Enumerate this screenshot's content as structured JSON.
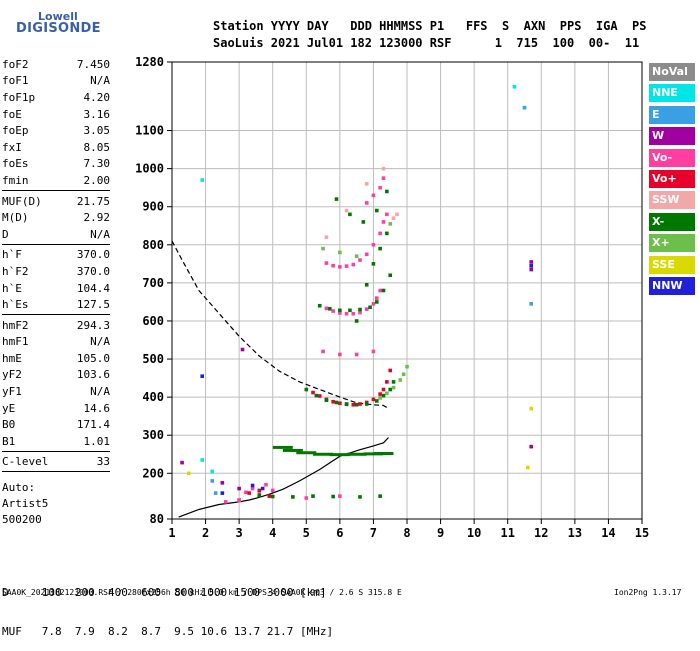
{
  "logo": {
    "line1": "Lowell",
    "line2": "DIGISONDE"
  },
  "header": {
    "row1": "Station YYYY DAY   DDD HHMMSS P1   FFS  S  AXN  PPS  IGA  PS",
    "row2": "SaoLuis 2021 Jul01 182 123000 RSF      1  715  100  00-  11"
  },
  "params": [
    {
      "name": "foF2",
      "value": "7.450"
    },
    {
      "name": "foF1",
      "value": "N/A"
    },
    {
      "name": "foF1p",
      "value": "4.20"
    },
    {
      "name": "foE",
      "value": "3.16"
    },
    {
      "name": "foEp",
      "value": "3.05"
    },
    {
      "name": "fxI",
      "value": "8.05"
    },
    {
      "name": "foEs",
      "value": "7.30"
    },
    {
      "name": "fmin",
      "value": "2.00"
    },
    {
      "sep": true
    },
    {
      "name": "MUF(D)",
      "value": "21.75"
    },
    {
      "name": "M(D)",
      "value": "2.92"
    },
    {
      "name": "D",
      "value": "N/A"
    },
    {
      "sep": true
    },
    {
      "name": "h`F",
      "value": "370.0"
    },
    {
      "name": "h`F2",
      "value": "370.0"
    },
    {
      "name": "h`E",
      "value": "104.4"
    },
    {
      "name": "h`Es",
      "value": "127.5"
    },
    {
      "sep": true
    },
    {
      "name": "hmF2",
      "value": "294.3"
    },
    {
      "name": "hmF1",
      "value": "N/A"
    },
    {
      "name": "hmE",
      "value": "105.0"
    },
    {
      "name": "yF2",
      "value": "103.6"
    },
    {
      "name": "yF1",
      "value": "N/A"
    },
    {
      "name": "yE",
      "value": "14.6"
    },
    {
      "name": "B0",
      "value": "171.4"
    },
    {
      "name": "B1",
      "value": "1.01"
    },
    {
      "sep": true
    },
    {
      "name": "C-level",
      "value": "33"
    },
    {
      "sep": true
    }
  ],
  "auto": {
    "line1": "Auto:",
    "line2": "Artist5",
    "line3": "500200"
  },
  "legend": [
    {
      "label": "NoVal",
      "color": "#8c8c8c"
    },
    {
      "label": "NNE",
      "color": "#00e5e5"
    },
    {
      "label": "E",
      "color": "#3aa0e6"
    },
    {
      "label": "W",
      "color": "#a000a0"
    },
    {
      "label": "Vo-",
      "color": "#ff3fa0"
    },
    {
      "label": "Vo+",
      "color": "#e6002a"
    },
    {
      "label": "SSW",
      "color": "#f0a8a8"
    },
    {
      "label": "X-",
      "color": "#007800"
    },
    {
      "label": "X+",
      "color": "#6cbf4a"
    },
    {
      "label": "SSE",
      "color": "#d9d900"
    },
    {
      "label": "NNW",
      "color": "#2020d8"
    }
  ],
  "muf_table": {
    "d_row": "D     100  200  400  600  800 1000 1500 3000 [km]",
    "muf_row": "MUF   7.8  7.9  8.2  8.7  9.5 10.6 13.7 21.7 [MHz]"
  },
  "footer": {
    "left": "SAA0K_2021182123000.RSF / 280fx256h 50 kHz 5.0 km / DPS-4 SAA0K 903 / 2.6 S 315.8 E",
    "right": "Ion2Png 1.3.17"
  },
  "chart_data": {
    "type": "scatter",
    "title": "",
    "xlabel": "",
    "ylabel": "",
    "xlim": [
      1,
      15
    ],
    "ylim": [
      80,
      1280
    ],
    "x_ticks": [
      1,
      2,
      3,
      4,
      5,
      6,
      7,
      8,
      9,
      10,
      11,
      12,
      13,
      14,
      15
    ],
    "y_ticks": [
      80,
      200,
      300,
      400,
      500,
      600,
      700,
      800,
      900,
      1000,
      1100,
      1280
    ],
    "grid": true,
    "series": [
      {
        "name": "Vo-",
        "color": "#ff3fa0",
        "x": [
          5.6,
          5.8,
          6.0,
          6.2,
          6.4,
          6.6,
          6.8,
          7.0,
          7.1,
          7.2,
          5.6,
          5.8,
          6.0,
          6.2,
          6.4,
          6.6,
          6.8,
          7.0,
          7.2,
          7.3,
          7.4,
          6.8,
          7.0,
          7.2,
          7.3,
          5.5,
          6.0,
          6.5,
          7.0,
          3.2,
          3.4,
          3.6,
          3.8,
          4.0,
          3.0,
          5.0,
          6.0,
          2.6,
          3.0
        ],
        "y": [
          633,
          626,
          621,
          619,
          619,
          622,
          631,
          645,
          660,
          680,
          752,
          745,
          742,
          744,
          748,
          760,
          775,
          800,
          830,
          860,
          880,
          910,
          930,
          950,
          975,
          520,
          512,
          512,
          520,
          150,
          160,
          145,
          170,
          155,
          130,
          135,
          140,
          125,
          128
        ]
      },
      {
        "name": "Vo+",
        "color": "#e6002a",
        "x": [
          5.2,
          5.4,
          5.6,
          5.8,
          6.0,
          6.2,
          6.4,
          6.6,
          6.8,
          7.0,
          7.2,
          7.3,
          7.4,
          7.5,
          3.3,
          3.6,
          3.9
        ],
        "y": [
          412,
          403,
          394,
          388,
          384,
          381,
          380,
          382,
          386,
          394,
          408,
          420,
          440,
          470,
          148,
          155,
          140
        ]
      },
      {
        "name": "X-",
        "color": "#007800",
        "x": [
          5.0,
          5.3,
          5.6,
          5.9,
          6.2,
          6.5,
          6.8,
          7.1,
          7.3,
          7.5,
          7.6,
          5.4,
          5.7,
          6.0,
          6.3,
          6.6,
          6.9,
          7.1,
          7.3,
          7.5,
          6.5,
          6.8,
          7.0,
          7.2,
          7.4,
          5.9,
          6.3,
          6.7,
          7.1,
          7.4,
          3.6,
          4.0,
          4.6,
          5.2,
          5.8,
          6.6,
          7.2
        ],
        "y": [
          420,
          404,
          392,
          386,
          382,
          380,
          382,
          390,
          404,
          420,
          440,
          640,
          632,
          628,
          628,
          630,
          636,
          650,
          680,
          720,
          600,
          695,
          750,
          790,
          830,
          920,
          880,
          860,
          890,
          940,
          142,
          139,
          138,
          140,
          139,
          138,
          140
        ]
      },
      {
        "name": "X+",
        "color": "#6cbf4a",
        "x": [
          7.2,
          7.4,
          7.6,
          7.8,
          7.9,
          8.0,
          5.5,
          6.0,
          6.5,
          7.5
        ],
        "y": [
          398,
          410,
          425,
          445,
          460,
          480,
          790,
          780,
          770,
          855
        ]
      },
      {
        "name": "SSW",
        "color": "#f0a8a8",
        "x": [
          5.6,
          6.2,
          6.8,
          7.3,
          7.6,
          7.7
        ],
        "y": [
          820,
          890,
          960,
          1000,
          870,
          880
        ]
      },
      {
        "name": "W",
        "color": "#a000a0",
        "x": [
          11.7,
          11.7,
          11.7,
          1.3,
          2.5,
          3.1,
          3.0
        ],
        "y": [
          755,
          735,
          270,
          228,
          175,
          525,
          160
        ]
      },
      {
        "name": "NNE",
        "color": "#00e5e5",
        "x": [
          1.9,
          11.2,
          2.2,
          1.9
        ],
        "y": [
          970,
          1215,
          205,
          235
        ]
      },
      {
        "name": "E",
        "color": "#3aa0e6",
        "x": [
          11.5,
          2.2,
          11.7,
          2.3
        ],
        "y": [
          1160,
          180,
          645,
          148
        ]
      },
      {
        "name": "SSE",
        "color": "#d9d900",
        "x": [
          11.7,
          11.6,
          1.5
        ],
        "y": [
          370,
          215,
          200
        ]
      },
      {
        "name": "NNW",
        "color": "#2020d8",
        "x": [
          11.7,
          1.9,
          3.4,
          3.7,
          2.5
        ],
        "y": [
          745,
          455,
          168,
          160,
          148
        ]
      }
    ],
    "profile_curve": {
      "x": [
        1.2,
        1.8,
        2.4,
        3.0,
        3.3,
        3.6,
        3.9,
        4.3,
        4.8,
        5.4,
        6.0,
        6.6,
        7.0,
        7.3,
        7.45
      ],
      "y": [
        85,
        105,
        118,
        125,
        130,
        137,
        145,
        158,
        180,
        210,
        245,
        262,
        272,
        280,
        294
      ]
    },
    "profile_curve_dashed": {
      "x": [
        1.0,
        1.3,
        1.8,
        2.4,
        3.0,
        3.6,
        4.2,
        4.8,
        5.4,
        6.0,
        6.5,
        7.0,
        7.3,
        7.45
      ],
      "y": [
        810,
        760,
        680,
        620,
        560,
        508,
        468,
        440,
        420,
        400,
        385,
        380,
        378,
        370
      ]
    },
    "e_layer_trace": {
      "x": [
        4.3,
        4.6,
        5.0,
        5.5,
        6.0,
        6.5,
        7.0,
        7.3
      ],
      "y": [
        268,
        260,
        254,
        250,
        249,
        250,
        251,
        252
      ]
    }
  }
}
